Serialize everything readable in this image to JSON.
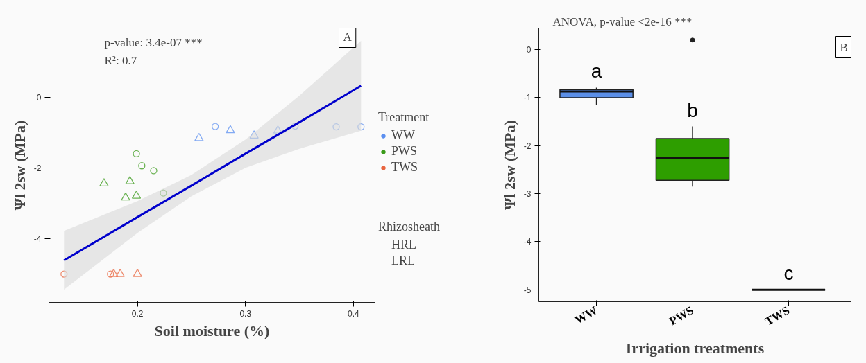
{
  "chart_data": [
    {
      "type": "scatter",
      "xlabel": "Soil moisture (%)",
      "ylabel": "Ψl 2sw (MPa)",
      "xlim": [
        0.118,
        0.42
      ],
      "ylim": [
        -5.8,
        1.95
      ],
      "xticks": [
        0.2,
        0.3,
        0.4
      ],
      "yticks": [
        -4,
        -2,
        0
      ],
      "grid": false,
      "legend": "right",
      "legend_title": "Treatment",
      "annotations": [
        "p-value: 3.4e-07 ***",
        "R²: 0.7",
        "A",
        "Rhizosheath",
        "HRL",
        "LRL"
      ],
      "series": [
        {
          "name": "WW",
          "color": "#5b8ff0",
          "marker": "circle",
          "x": [
            0.272,
            0.346,
            0.384,
            0.407
          ],
          "values": [
            -0.83,
            -0.82,
            -0.84,
            -0.84
          ]
        },
        {
          "name": "PWS",
          "color": "#3a9a1a",
          "marker": "circle",
          "x": [
            0.199,
            0.204,
            0.215,
            0.224
          ],
          "values": [
            -1.6,
            -1.94,
            -2.08,
            -2.71
          ]
        },
        {
          "name": "TWS",
          "color": "#e8653f",
          "marker": "circle",
          "x": [
            0.132,
            0.175
          ],
          "values": [
            -5.0,
            -5.0
          ]
        },
        {
          "color": "#5b8ff0",
          "marker": "triangle",
          "x": [
            0.257,
            0.286,
            0.308,
            0.33
          ],
          "values": [
            -1.16,
            -0.94,
            -1.09,
            -0.95
          ]
        },
        {
          "color": "#3a9a1a",
          "marker": "triangle",
          "x": [
            0.169,
            0.193,
            0.189,
            0.199
          ],
          "values": [
            -2.44,
            -2.38,
            -2.84,
            -2.79
          ]
        },
        {
          "color": "#e8653f",
          "marker": "triangle",
          "x": [
            0.178,
            0.184,
            0.2
          ],
          "values": [
            -5.0,
            -5.0,
            -5.0
          ]
        },
        {
          "type": "line",
          "color": "#0000cc",
          "x": [
            0.132,
            0.2,
            0.25,
            0.3,
            0.35,
            0.407
          ],
          "values": [
            -4.61,
            -3.39,
            -2.5,
            -1.6,
            -0.71,
            0.32
          ],
          "lower": [
            -5.44,
            -3.84,
            -2.8,
            -2.0,
            -1.46,
            -0.95
          ],
          "upper": [
            -3.78,
            -2.94,
            -2.2,
            -1.2,
            0.04,
            1.59
          ]
        }
      ]
    },
    {
      "type": "box",
      "categories": [
        "WW",
        "PWS",
        "TWS"
      ],
      "xlabel": "Irrigation treatments",
      "ylabel": "Ψl 2sw (MPa)",
      "ylim": [
        -5.25,
        0.45
      ],
      "yticks": [
        -5,
        -4,
        -3,
        -2,
        -1,
        0
      ],
      "grid": false,
      "colors": [
        "#5b8fe8",
        "#2e9e00",
        "#222222"
      ],
      "boxes": [
        {
          "low": -1.16,
          "q1": -1.0,
          "median": -0.87,
          "q3": -0.83,
          "high": -0.79
        },
        {
          "low": -2.85,
          "q1": -2.72,
          "median": -2.25,
          "q3": -1.85,
          "high": -1.6,
          "outliers": [
            0.2
          ]
        },
        {
          "low": -5.0,
          "q1": -5.0,
          "median": -5.0,
          "q3": -5.0,
          "high": -5.0
        }
      ],
      "annotations": [
        "ANOVA, p-value <2e-16 ***",
        "a",
        "b",
        "c",
        "B"
      ]
    }
  ]
}
